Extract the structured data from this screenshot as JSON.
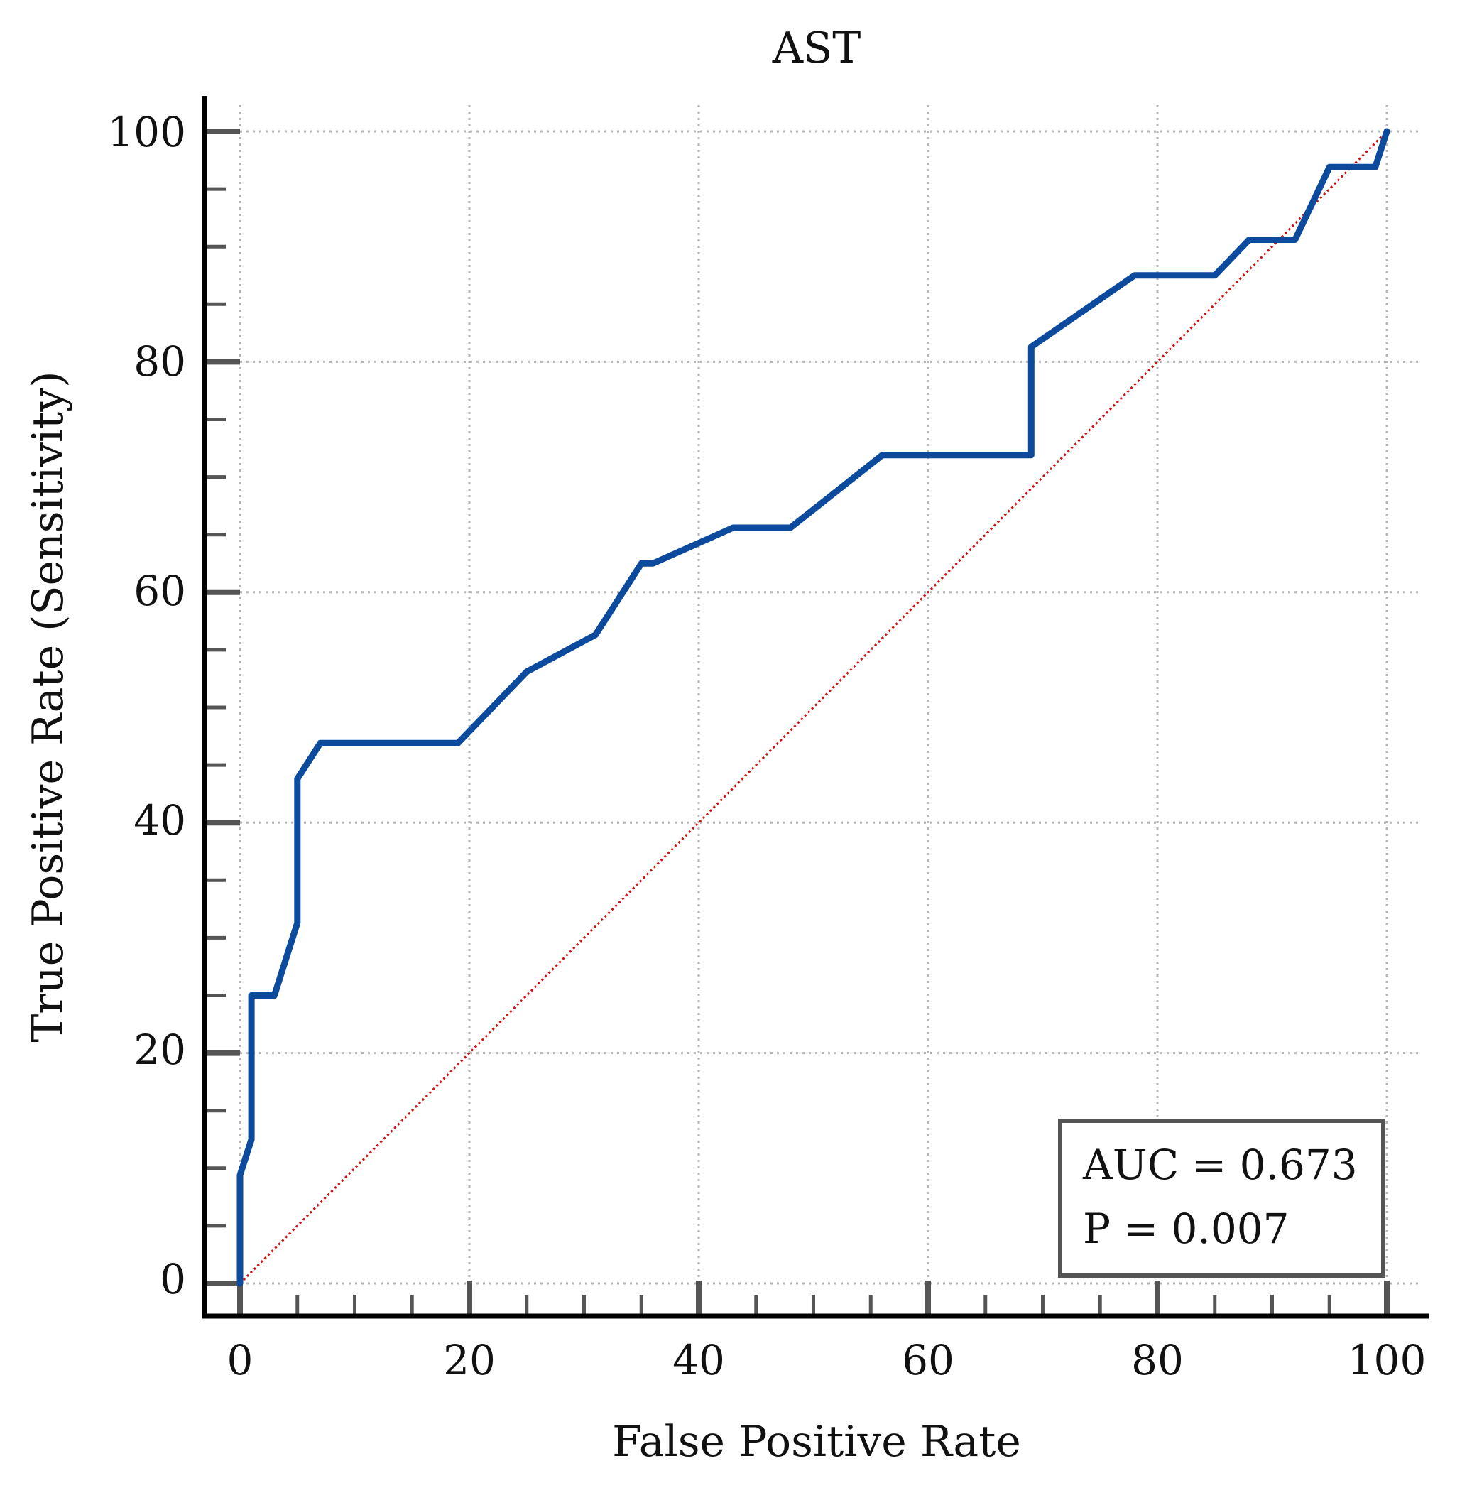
{
  "chart_data": {
    "type": "line",
    "title": "AST",
    "xlabel": "False Positive Rate",
    "ylabel": "True Positive Rate (Sensitivity)",
    "xlim": [
      0,
      100
    ],
    "ylim": [
      0,
      100
    ],
    "xticks": [
      "0",
      "20",
      "40",
      "60",
      "80",
      "100"
    ],
    "yticks": [
      "0",
      "20",
      "40",
      "60",
      "80",
      "100"
    ],
    "grid": true,
    "series": [
      {
        "color": "#0b4a9c",
        "x": [
          0,
          0,
          1,
          1,
          3,
          5,
          5,
          7,
          19,
          25,
          31,
          33,
          35,
          36,
          43,
          48,
          56,
          69,
          69,
          78,
          85,
          88,
          92,
          95,
          99,
          100
        ],
        "y": [
          0,
          9.4,
          12.5,
          25,
          25,
          31.3,
          43.8,
          46.9,
          46.9,
          53.1,
          56.3,
          59.4,
          62.5,
          62.5,
          65.6,
          65.6,
          71.9,
          71.9,
          81.3,
          87.5,
          87.5,
          90.6,
          90.6,
          96.9,
          96.9,
          100
        ]
      },
      {
        "color": "#cc1111",
        "style": "dotted",
        "x": [
          0,
          100
        ],
        "y": [
          0,
          100
        ]
      }
    ],
    "annotations": {
      "auc": "AUC = 0.673",
      "p": "P = 0.007"
    }
  }
}
